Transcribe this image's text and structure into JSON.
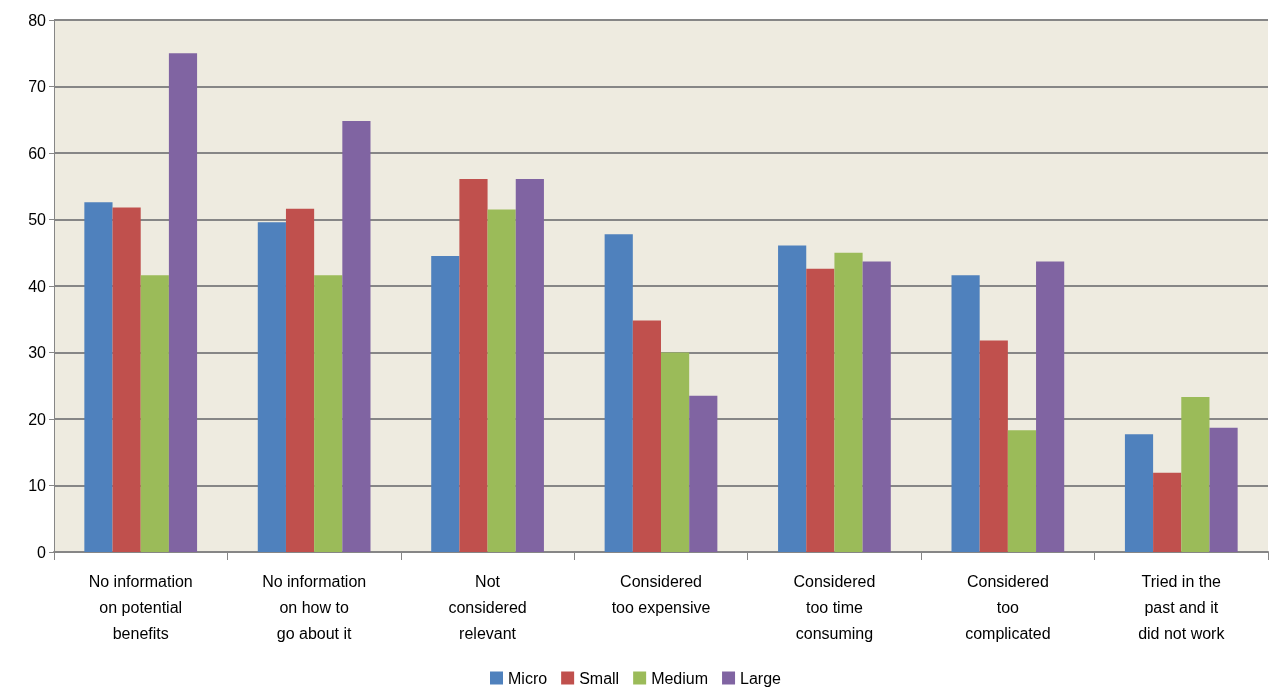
{
  "chart_data": {
    "type": "bar",
    "categories": [
      "No information\non potential\nbenefits",
      "No information\non how to\ngo about it",
      "Not\nconsidered\nrelevant",
      "Considered\ntoo expensive",
      "Considered\ntoo time\nconsuming",
      "Considered\ntoo\ncomplicated",
      "Tried in the\npast and it\ndid not work"
    ],
    "series": [
      {
        "name": "Micro",
        "color": "#4f81bd",
        "values": [
          52.6,
          49.6,
          44.5,
          47.8,
          46.1,
          41.6,
          17.7
        ]
      },
      {
        "name": "Small",
        "color": "#c0504d",
        "values": [
          51.8,
          51.6,
          56.1,
          34.8,
          42.6,
          31.8,
          11.9
        ]
      },
      {
        "name": "Medium",
        "color": "#9bbb59",
        "values": [
          41.6,
          41.6,
          51.5,
          30.0,
          45.0,
          18.3,
          23.3
        ]
      },
      {
        "name": "Large",
        "color": "#8064a2",
        "values": [
          75.0,
          64.8,
          56.1,
          23.5,
          43.7,
          43.7,
          18.7
        ]
      }
    ],
    "ylim": [
      0,
      80
    ],
    "yticks": [
      0,
      10,
      20,
      30,
      40,
      50,
      60,
      70,
      80
    ],
    "grid": "y",
    "legend": "bottom"
  }
}
